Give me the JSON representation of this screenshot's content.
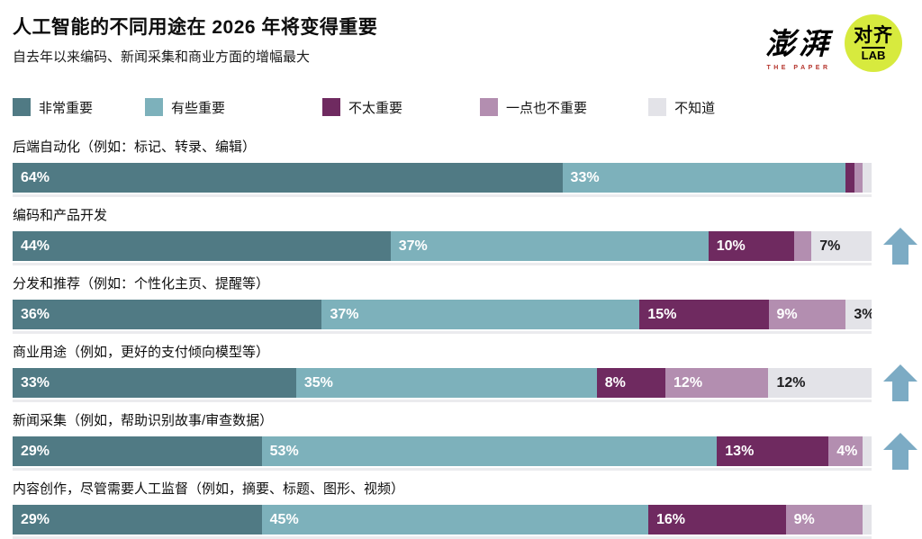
{
  "header": {
    "title": "人工智能的不同用途在 2026 年将变得重要",
    "subtitle": "自去年以来编码、新闻采集和商业方面的增幅最大",
    "logos": {
      "thepaper_cn": "澎湃",
      "thepaper_en": "THE PAPER",
      "lab_cn": "对齐",
      "lab_en": "LAB",
      "lab_bg_color": "#d7ea3e"
    }
  },
  "chart_data": {
    "type": "bar",
    "orientation": "horizontal_stacked",
    "unit": "%",
    "value_range": [
      0,
      100
    ],
    "legend_position": "top",
    "grid": false,
    "title": "人工智能的不同用途在 2026 年将变得重要",
    "subtitle": "自去年以来编码、新闻采集和商业方面的增幅最大",
    "categories": [
      "后端自动化（例如：标记、转录、编辑）",
      "编码和产品开发",
      "分发和推荐（例如：个性化主页、提醒等）",
      "商业用途（例如，更好的支付倾向模型等）",
      "新闻采集（例如，帮助识别故事/审查数据）",
      "内容创作，尽管需要人工监督（例如，摘要、标题、图形、视频）"
    ],
    "series": [
      {
        "name": "非常重要",
        "color": "#507a84",
        "text_color": "#ffffff",
        "values": [
          64,
          44,
          36,
          33,
          29,
          29
        ]
      },
      {
        "name": "有些重要",
        "color": "#7db1bb",
        "text_color": "#ffffff",
        "values": [
          33,
          37,
          37,
          35,
          53,
          45
        ]
      },
      {
        "name": "不太重要",
        "color": "#6f2a60",
        "text_color": "#ffffff",
        "values": [
          1,
          10,
          15,
          8,
          13,
          16
        ]
      },
      {
        "name": "一点也不重要",
        "color": "#b38eb0",
        "text_color": "#ffffff",
        "values": [
          1,
          2,
          9,
          12,
          4,
          9
        ]
      },
      {
        "name": "不知道",
        "color": "#e3e3e8",
        "text_color": "#1d1d1f",
        "values": [
          1,
          7,
          3,
          12,
          1,
          1
        ]
      }
    ],
    "row_has_up_arrow": [
      false,
      true,
      false,
      true,
      true,
      false
    ],
    "arrow_color": "#7cabc4",
    "label_visibility_min_percent": 3
  }
}
